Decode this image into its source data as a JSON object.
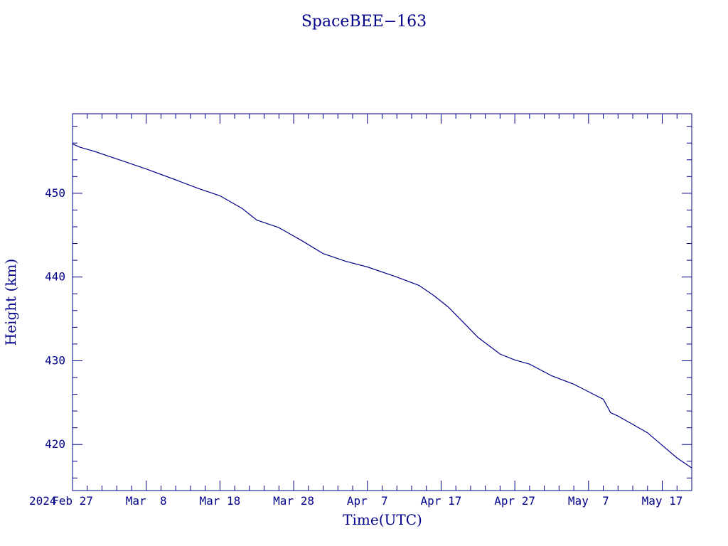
{
  "chart_data": {
    "type": "line",
    "title": "SpaceBEE−163",
    "xlabel": "Time(UTC)",
    "ylabel": "Height (km)",
    "x_start_label": "2024",
    "x_tick_labels": [
      "Feb 27",
      "Mar  8",
      "Mar 18",
      "Mar 28",
      "Apr  7",
      "Apr 17",
      "Apr 27",
      "May  7",
      "May 17"
    ],
    "x_tick_dates": [
      "2024-02-27",
      "2024-03-08",
      "2024-03-18",
      "2024-03-28",
      "2024-04-07",
      "2024-04-17",
      "2024-04-27",
      "2024-05-07",
      "2024-05-17"
    ],
    "xlim": [
      "2024-02-27",
      "2024-05-21"
    ],
    "ylim": [
      414.5,
      459.5
    ],
    "y_ticks": [
      420,
      430,
      440,
      450
    ],
    "grid": false,
    "color": "#00008b",
    "series": [
      {
        "x": [
          "2024-02-27",
          "2024-02-28",
          "2024-03-01",
          "2024-03-03",
          "2024-03-04",
          "2024-03-05",
          "2024-03-08",
          "2024-03-12",
          "2024-03-15",
          "2024-03-18",
          "2024-03-21",
          "2024-03-23",
          "2024-03-25",
          "2024-03-26",
          "2024-03-27",
          "2024-03-29",
          "2024-04-01",
          "2024-04-04",
          "2024-04-07",
          "2024-04-11",
          "2024-04-14",
          "2024-04-16",
          "2024-04-18",
          "2024-04-20",
          "2024-04-22",
          "2024-04-25",
          "2024-04-27",
          "2024-04-29",
          "2024-05-02",
          "2024-05-05",
          "2024-05-07",
          "2024-05-09",
          "2024-05-10",
          "2024-05-11",
          "2024-05-12",
          "2024-05-15",
          "2024-05-17",
          "2024-05-19",
          "2024-05-21"
        ],
        "y": [
          455.9,
          455.5,
          455.0,
          454.4,
          454.1,
          453.8,
          452.9,
          451.6,
          450.6,
          449.7,
          448.2,
          446.8,
          446.2,
          445.9,
          445.4,
          444.4,
          442.8,
          441.9,
          441.2,
          440.0,
          439.0,
          437.8,
          436.4,
          434.6,
          432.8,
          430.8,
          430.1,
          429.6,
          428.2,
          427.2,
          426.3,
          425.4,
          423.8,
          423.4,
          422.9,
          421.4,
          419.9,
          418.4,
          417.2
        ]
      }
    ]
  }
}
